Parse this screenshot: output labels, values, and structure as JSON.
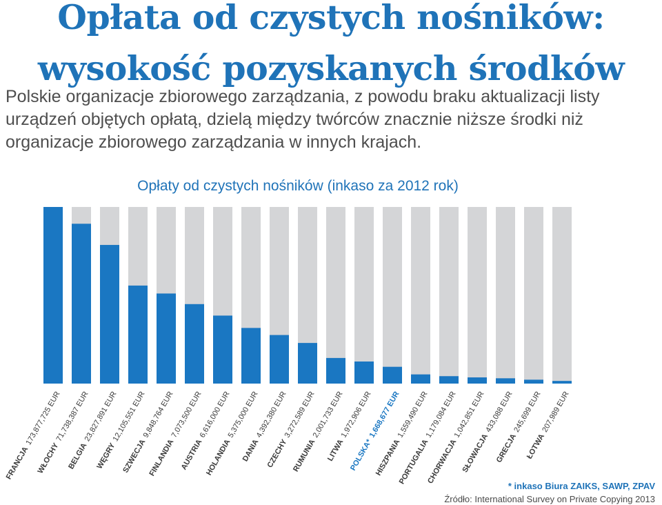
{
  "header": {
    "title_line1": "Opłata od czystych nośników:",
    "title_line2": "wysokość pozyskanych środków",
    "subtitle": "Polskie organizacje zbiorowego zarządzania, z powodu braku aktualizacji listy urządzeń objętych opłatą, dzielą między twórców znacznie niższe środki niż organizacje zbiorowego zarządzania w innych krajach."
  },
  "chart_data": {
    "type": "bar",
    "title": "Opłaty od czystych nośników (inkaso za 2012 rok)",
    "categories": [
      "FRANCJA",
      "WŁOCHY",
      "BELGIA",
      "WĘGRY",
      "SZWECJA",
      "FINLANDIA",
      "AUSTRIA",
      "HOLANDIA",
      "DANIA",
      "CZECHY",
      "RUMUNIA",
      "LITWA",
      "POLSKA*",
      "HISZPANIA",
      "PORTUGALIA",
      "CHORWACJA",
      "SŁOWACJA",
      "GRECJA",
      "ŁOTWA"
    ],
    "value_labels": [
      "173,877,725 EUR",
      "71,738,387 EUR",
      "23,827,891 EUR",
      "12,105,551 EUR",
      "9,848,764 EUR",
      "7,073,500 EUR",
      "6,616,000 EUR",
      "5,375,000 EUR",
      "4,392,380 EUR",
      "3,272,589 EUR",
      "2,001,733 EUR",
      "1,972,906 EUR",
      "1,668,677 EUR",
      "1,559,490 EUR",
      "1,179,084 EUR",
      "1,042,851 EUR",
      "433,088 EUR",
      "245,699 EUR",
      "207,989 EUR"
    ],
    "values": [
      173877725,
      71738387,
      23827891,
      12105551,
      9848764,
      7073500,
      6616000,
      5375000,
      4392380,
      3272589,
      2001733,
      1972906,
      1668677,
      1559490,
      1179084,
      1042851,
      433088,
      245699,
      207989
    ],
    "bar_fill_fraction": [
      1.0,
      0.905,
      0.785,
      0.555,
      0.51,
      0.45,
      0.385,
      0.315,
      0.275,
      0.23,
      0.145,
      0.125,
      0.095,
      0.052,
      0.042,
      0.035,
      0.03,
      0.022,
      0.015
    ],
    "highlight": "POLSKA*",
    "colors": {
      "bar": "#1a77c2",
      "track": "#d4d5d7",
      "label_default": "#3a3a3a",
      "label_highlight": "#1a77c2"
    }
  },
  "footer": {
    "footnote": "* inkaso Biura ZAIKS, SAWP, ZPAV",
    "source": "Źródło: International Survey on Private Copying 2013"
  }
}
